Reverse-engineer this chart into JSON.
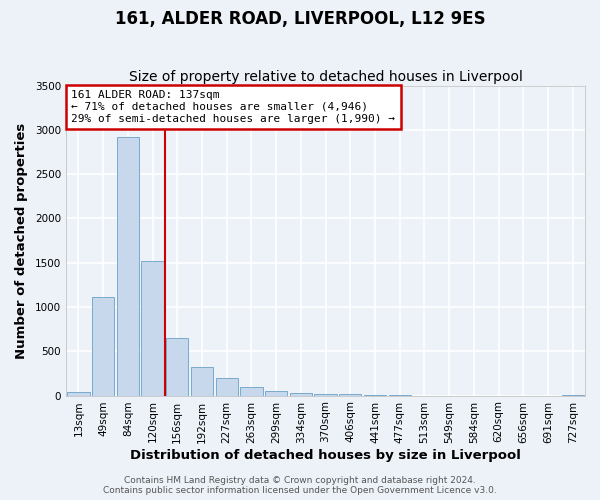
{
  "title": "161, ALDER ROAD, LIVERPOOL, L12 9ES",
  "subtitle": "Size of property relative to detached houses in Liverpool",
  "xlabel": "Distribution of detached houses by size in Liverpool",
  "ylabel": "Number of detached properties",
  "bar_labels": [
    "13sqm",
    "49sqm",
    "84sqm",
    "120sqm",
    "156sqm",
    "192sqm",
    "227sqm",
    "263sqm",
    "299sqm",
    "334sqm",
    "370sqm",
    "406sqm",
    "441sqm",
    "477sqm",
    "513sqm",
    "549sqm",
    "584sqm",
    "620sqm",
    "656sqm",
    "691sqm",
    "727sqm"
  ],
  "bar_values": [
    40,
    1110,
    2920,
    1520,
    650,
    325,
    195,
    100,
    55,
    30,
    20,
    15,
    5,
    2,
    0,
    0,
    0,
    0,
    0,
    0,
    5
  ],
  "bar_color": "#c8d8ec",
  "bar_edge_color": "#7aaacf",
  "vline_color": "#cc0000",
  "annotation_text": "161 ALDER ROAD: 137sqm\n← 71% of detached houses are smaller (4,946)\n29% of semi-detached houses are larger (1,990) →",
  "annotation_box_facecolor": "#ffffff",
  "annotation_box_edgecolor": "#cc0000",
  "ylim": [
    0,
    3500
  ],
  "yticks": [
    0,
    500,
    1000,
    1500,
    2000,
    2500,
    3000,
    3500
  ],
  "background_color": "#edf2f9",
  "plot_bg_color": "#edf2f9",
  "grid_color": "#ffffff",
  "title_fontsize": 12,
  "subtitle_fontsize": 10,
  "axis_label_fontsize": 9.5,
  "tick_fontsize": 7.5,
  "annotation_fontsize": 8,
  "footer_fontsize": 6.5,
  "footer_line1": "Contains HM Land Registry data © Crown copyright and database right 2024.",
  "footer_line2": "Contains public sector information licensed under the Open Government Licence v3.0."
}
